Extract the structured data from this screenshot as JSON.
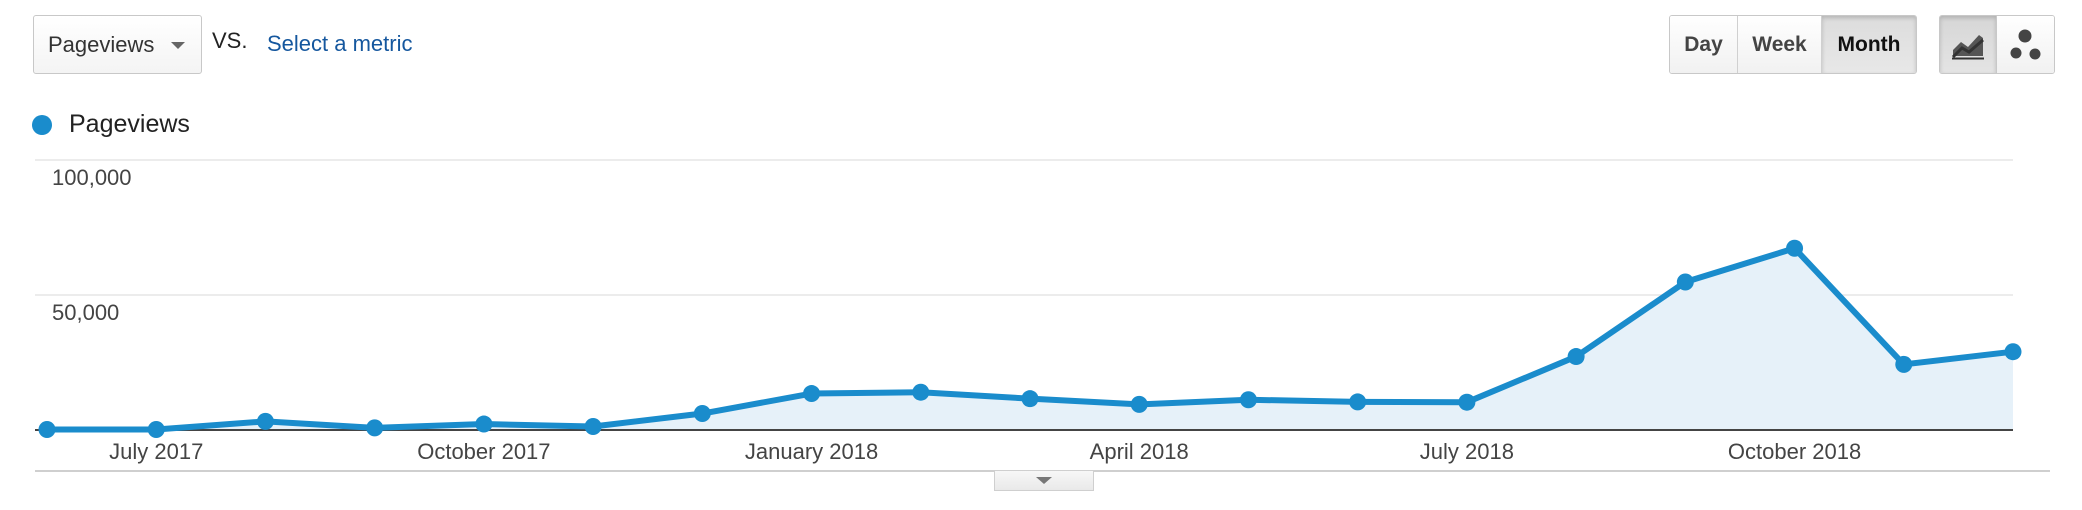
{
  "toolbar": {
    "metric_select_value": "Pageviews",
    "vs_label": "VS.",
    "select_metric_link": "Select a metric",
    "period_buttons": [
      "Day",
      "Week",
      "Month"
    ],
    "active_period": "Month",
    "chart_types": [
      {
        "icon": "line-chart-icon",
        "active": true
      },
      {
        "icon": "motion-chart-icon",
        "active": false
      }
    ]
  },
  "legend": {
    "label": "Pageviews",
    "color": "#1a8ccc"
  },
  "chart_data": {
    "type": "area",
    "ylim": [
      0,
      100000
    ],
    "y_ticks": [
      {
        "value": 100000,
        "label": "100,000"
      },
      {
        "value": 50000,
        "label": "50,000"
      }
    ],
    "x_tick_labels": [
      {
        "index": 1,
        "label": "July 2017"
      },
      {
        "index": 4,
        "label": "October 2017"
      },
      {
        "index": 7,
        "label": "January 2018"
      },
      {
        "index": 10,
        "label": "April 2018"
      },
      {
        "index": 13,
        "label": "July 2018"
      },
      {
        "index": 16,
        "label": "October 2018"
      }
    ],
    "x": [
      "Jun 2017",
      "Jul 2017",
      "Aug 2017",
      "Sep 2017",
      "Oct 2017",
      "Nov 2017",
      "Dec 2017",
      "Jan 2018",
      "Feb 2018",
      "Mar 2018",
      "Apr 2018",
      "May 2018",
      "Jun 2018",
      "Jul 2018",
      "Aug 2018",
      "Sep 2018",
      "Oct 2018",
      "Nov 2018",
      "Dec 2018"
    ],
    "series": [
      {
        "name": "Pageviews",
        "values": [
          200,
          200,
          3200,
          800,
          2200,
          1300,
          6100,
          13500,
          14000,
          11600,
          9500,
          11200,
          10400,
          10300,
          27200,
          54800,
          67300,
          24300,
          29000
        ]
      }
    ],
    "line_color": "#1a8ccc",
    "fill_color": "#e6f1f9",
    "grid": true
  }
}
